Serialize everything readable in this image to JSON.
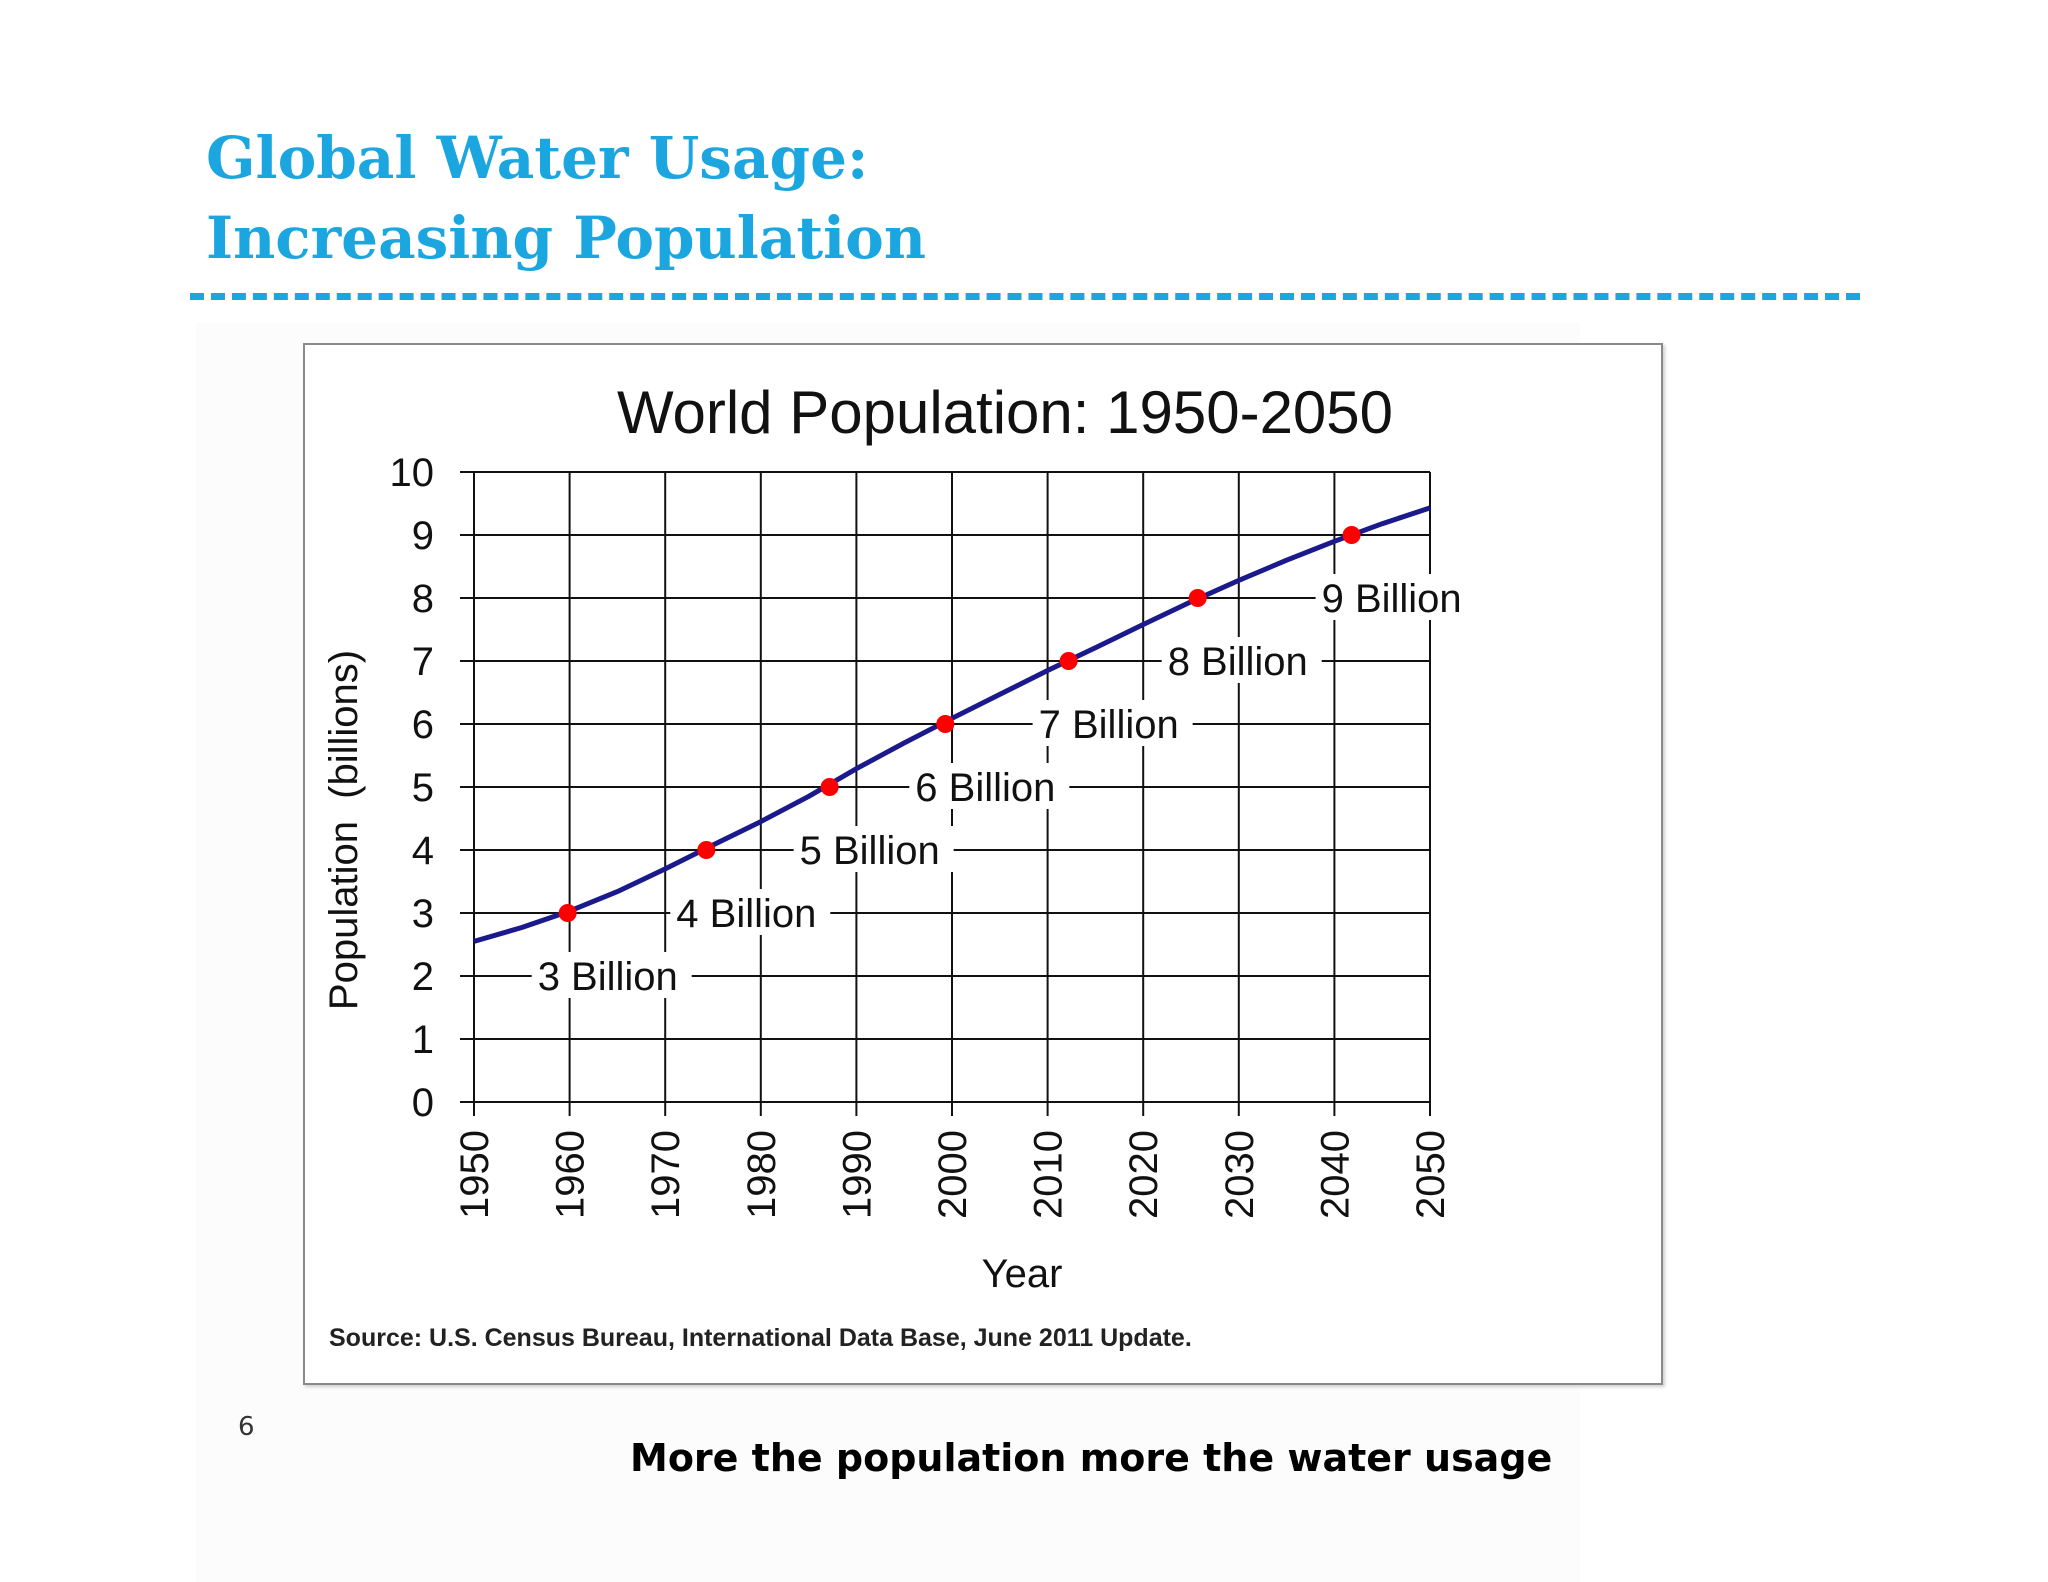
{
  "slide": {
    "title_line1": "Global Water Usage:",
    "title_line2": "Increasing Population",
    "accent_color": "#1ba6e0",
    "page_number": "6",
    "caption": "More the population more the water usage"
  },
  "chart_data": {
    "type": "line",
    "title": "World Population: 1950-2050",
    "xlabel": "Year",
    "ylabel": "Population  (billions)",
    "source": "Source: U.S. Census Bureau, International Data Base, June 2011 Update.",
    "xlim": [
      1950,
      2050
    ],
    "ylim": [
      0,
      10
    ],
    "x_ticks": [
      "1950",
      "1960",
      "1970",
      "1980",
      "1990",
      "2000",
      "2010",
      "2020",
      "2030",
      "2040",
      "2050"
    ],
    "y_ticks": [
      "0",
      "1",
      "2",
      "3",
      "4",
      "5",
      "6",
      "7",
      "8",
      "9",
      "10"
    ],
    "grid": true,
    "series": [
      {
        "color": "#1a1a8c",
        "x": [
          1950,
          1955,
          1960,
          1965,
          1970,
          1975,
          1980,
          1985,
          1990,
          1995,
          2000,
          2005,
          2010,
          2015,
          2020,
          2025,
          2030,
          2035,
          2040,
          2045,
          2050
        ],
        "y": [
          2.55,
          2.77,
          3.03,
          3.34,
          3.7,
          4.08,
          4.45,
          4.85,
          5.29,
          5.7,
          6.09,
          6.47,
          6.85,
          7.21,
          7.58,
          7.94,
          8.28,
          8.6,
          8.9,
          9.18,
          9.43
        ]
      }
    ],
    "milestones": [
      {
        "label": "3 Billion",
        "x": 1959.8,
        "y": 3
      },
      {
        "label": "4 Billion",
        "x": 1974.3,
        "y": 4
      },
      {
        "label": "5 Billion",
        "x": 1987.2,
        "y": 5
      },
      {
        "label": "6 Billion",
        "x": 1999.3,
        "y": 6
      },
      {
        "label": "7 Billion",
        "x": 2012.2,
        "y": 7
      },
      {
        "label": "8 Billion",
        "x": 2025.7,
        "y": 8
      },
      {
        "label": "9 Billion",
        "x": 2041.8,
        "y": 9
      }
    ],
    "marker_color": "#ff0000"
  }
}
